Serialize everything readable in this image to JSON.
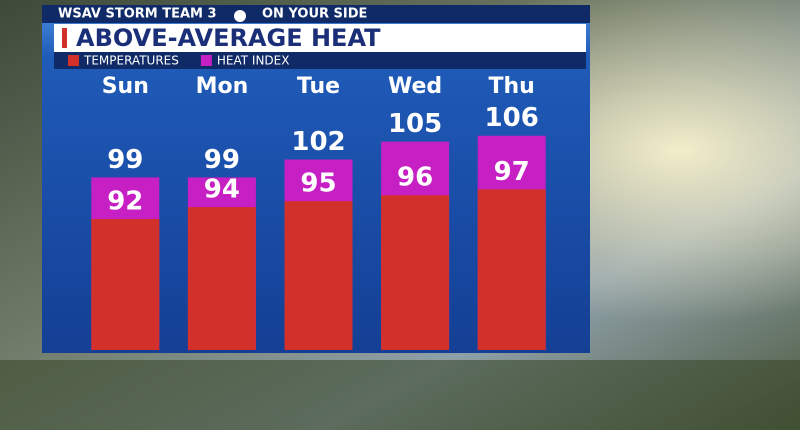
{
  "header": {
    "station": "WSAV STORM TEAM 3",
    "slogan": "ON YOUR SIDE"
  },
  "chart_data": {
    "type": "overlap-bar",
    "title": "ABOVE-AVERAGE HEAT",
    "categories": [
      "Sun",
      "Mon",
      "Tue",
      "Wed",
      "Thu"
    ],
    "series": [
      {
        "name": "TEMPERATURES",
        "color": "#d2302b",
        "values": [
          92,
          94,
          95,
          96,
          97
        ]
      },
      {
        "name": "HEAT INDEX",
        "color": "#c61fc4",
        "values": [
          99,
          99,
          102,
          105,
          106
        ]
      }
    ],
    "ylim": [
      70,
      112
    ]
  }
}
